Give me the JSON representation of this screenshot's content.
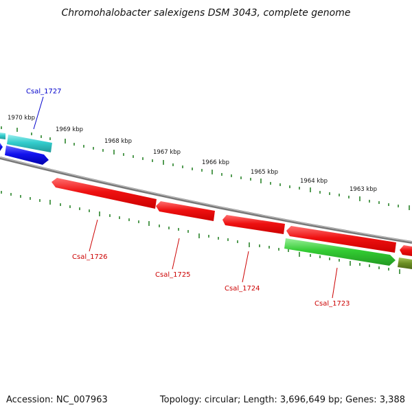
{
  "title": "Chromohalobacter salexigens DSM 3043, complete genome",
  "accession_text": "Accession: NC_007963",
  "topology_text": "Topology: circular; Length: 3,696,649 bp; Genes: 3,388",
  "axis": {
    "unit": "kbp",
    "ticks": [
      {
        "value": 1970,
        "label": "1970 kbp"
      },
      {
        "value": 1969,
        "label": "1969 kbp"
      },
      {
        "value": 1968,
        "label": "1968 kbp"
      },
      {
        "value": 1967,
        "label": "1967 kbp"
      },
      {
        "value": 1966,
        "label": "1966 kbp"
      },
      {
        "value": 1965,
        "label": "1965 kbp"
      },
      {
        "value": 1964,
        "label": "1964 kbp"
      },
      {
        "value": 1963,
        "label": "1963 kbp"
      }
    ]
  },
  "genes": [
    {
      "name": "Csal_1727",
      "color": "#0000cc"
    },
    {
      "name": "Csal_1726",
      "color": "#cc0000"
    },
    {
      "name": "Csal_1725",
      "color": "#cc0000"
    },
    {
      "name": "Csal_1724",
      "color": "#cc0000"
    },
    {
      "name": "Csal_1723",
      "color": "#cc0000"
    }
  ],
  "colors": {
    "backbone": "#8a8a8a",
    "ticks": "#1a7a1a",
    "forward_red": "#ee1111",
    "reverse_green": "#33cc33",
    "reverse_olive": "#6b8e23",
    "teal": "#33cccc",
    "blue": "#1111ee"
  }
}
